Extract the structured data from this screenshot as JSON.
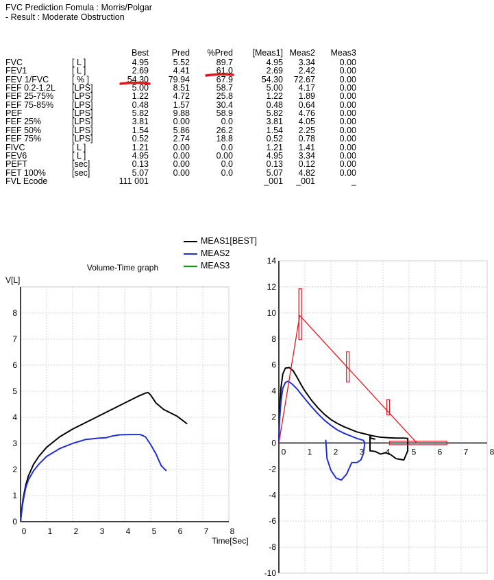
{
  "header": {
    "line1": "FVC Prediction Fomula : Morris/Polgar",
    "line2": "- Result : Moderate Obstruction"
  },
  "table": {
    "columns": [
      "Best",
      "Pred",
      "%Pred",
      "[Meas1]",
      "Meas2",
      "Meas3"
    ],
    "rows": [
      {
        "name": "FVC",
        "unit": "[ L ]",
        "values": [
          "4.95",
          "5.52",
          "89.7",
          "4.95",
          "3.34",
          "0.00"
        ]
      },
      {
        "name": "FEV1",
        "unit": "[ L ]",
        "values": [
          "2.69",
          "4.41",
          "61.0",
          "2.69",
          "2.42",
          "0.00"
        ]
      },
      {
        "name": "FEV 1/FVC",
        "unit": "[ % ]",
        "values": [
          "54.30",
          "79.94",
          "67.9",
          "54.30",
          "72.67",
          "0.00"
        ]
      },
      {
        "name": "FEF 0.2-1.2L",
        "unit": "[LPS]",
        "values": [
          "5.00",
          "8.51",
          "58.7",
          "5.00",
          "4.17",
          "0.00"
        ]
      },
      {
        "name": "FEF 25-75%",
        "unit": "[LPS]",
        "values": [
          "1.22",
          "4.72",
          "25.8",
          "1.22",
          "1.89",
          "0.00"
        ]
      },
      {
        "name": "FEF 75-85%",
        "unit": "[LPS]",
        "values": [
          "0.48",
          "1.57",
          "30.4",
          "0.48",
          "0.64",
          "0.00"
        ]
      },
      {
        "name": "PEF",
        "unit": "[LPS]",
        "values": [
          "5.82",
          "9.88",
          "58.9",
          "5.82",
          "4.76",
          "0.00"
        ]
      },
      {
        "name": "FEF 25%",
        "unit": "[LPS]",
        "values": [
          "3.81",
          "0.00",
          "0.0",
          "3.81",
          "4.05",
          "0.00"
        ]
      },
      {
        "name": "FEF 50%",
        "unit": "[LPS]",
        "values": [
          "1.54",
          "5.86",
          "26.2",
          "1.54",
          "2.25",
          "0.00"
        ]
      },
      {
        "name": "FEF 75%",
        "unit": "[LPS]",
        "values": [
          "0.52",
          "2.74",
          "18.8",
          "0.52",
          "0.78",
          "0.00"
        ]
      },
      {
        "name": "FIVC",
        "unit": "[ L ]",
        "values": [
          "1.21",
          "0.00",
          "0.0",
          "1.21",
          "1.41",
          "0.00"
        ]
      },
      {
        "name": "FEV6",
        "unit": "[ L ]",
        "values": [
          "4.95",
          "0.00",
          "0.00",
          "4.95",
          "3.34",
          "0.00"
        ]
      },
      {
        "name": "PEFT",
        "unit": "[sec]",
        "values": [
          "0.13",
          "0.00",
          "0.0",
          "0.13",
          "0.12",
          "0.00"
        ]
      },
      {
        "name": "FET 100%",
        "unit": "[sec]",
        "values": [
          "5.07",
          "0.00",
          "0.0",
          "5.07",
          "4.82",
          "0.00"
        ]
      },
      {
        "name": "FVL Ecode",
        "unit": "",
        "values": [
          "111 001",
          "",
          "",
          "_001",
          "_001",
          "_"
        ]
      }
    ]
  },
  "legend": [
    {
      "label": "MEAS1[BEST]",
      "color": "#000000"
    },
    {
      "label": "MEAS2",
      "color": "#1f2fd0"
    },
    {
      "label": "MEAS3",
      "color": "#0a9a0a"
    }
  ],
  "highlight_color": "#e8141c",
  "chart_data": [
    {
      "type": "line",
      "title": "Volume-Time graph",
      "ylabel": "V[L]",
      "xlabel": "Time[Sec]",
      "xlim": [
        0,
        8
      ],
      "ylim": [
        0,
        9
      ],
      "xticks": [
        "0",
        "1",
        "2",
        "3",
        "4",
        "5",
        "6",
        "7",
        "8"
      ],
      "yticks": [
        "0",
        "1",
        "2",
        "3",
        "4",
        "5",
        "6",
        "7",
        "8"
      ],
      "grid": true,
      "series": [
        {
          "name": "MEAS1[BEST]",
          "color": "#000000",
          "x": [
            0,
            0.05,
            0.1,
            0.2,
            0.3,
            0.5,
            0.7,
            1.0,
            1.5,
            2.0,
            2.5,
            3.0,
            3.5,
            4.0,
            4.5,
            4.8,
            4.9,
            5.0,
            5.2,
            5.5,
            6.0,
            6.4
          ],
          "y": [
            0,
            0.5,
            0.9,
            1.4,
            1.75,
            2.2,
            2.5,
            2.85,
            3.25,
            3.55,
            3.8,
            4.05,
            4.3,
            4.55,
            4.8,
            4.93,
            4.95,
            4.85,
            4.55,
            4.3,
            4.05,
            3.75
          ]
        },
        {
          "name": "MEAS2",
          "color": "#1f2fd0",
          "x": [
            0,
            0.05,
            0.1,
            0.2,
            0.3,
            0.5,
            0.7,
            1.0,
            1.5,
            2.0,
            2.5,
            3.0,
            3.3,
            3.5,
            3.8,
            4.2,
            4.6,
            4.8,
            5.0,
            5.2,
            5.4,
            5.6
          ],
          "y": [
            0,
            0.45,
            0.8,
            1.3,
            1.6,
            1.95,
            2.2,
            2.5,
            2.8,
            3.0,
            3.15,
            3.2,
            3.22,
            3.28,
            3.33,
            3.34,
            3.34,
            3.25,
            2.95,
            2.6,
            2.15,
            1.95
          ]
        },
        {
          "name": "MEAS3",
          "color": "#0a9a0a",
          "x": [],
          "y": []
        }
      ]
    },
    {
      "type": "line",
      "title": "",
      "xlabel": "",
      "ylabel": "",
      "xlim": [
        0,
        8
      ],
      "ylim": [
        -10,
        14
      ],
      "xticks": [
        "0",
        "1",
        "2",
        "3",
        "4",
        "5",
        "6",
        "7",
        "8"
      ],
      "yticks": [
        "14",
        "12",
        "10",
        "8",
        "6",
        "4",
        "2",
        "0",
        "-2",
        "-4",
        "-6",
        "-8",
        "-10"
      ],
      "grid": true,
      "series": [
        {
          "name": "MEAS1[BEST]",
          "color": "#000000",
          "x": [
            0,
            0.03,
            0.08,
            0.15,
            0.25,
            0.4,
            0.55,
            0.7,
            0.85,
            1.0,
            1.25,
            1.5,
            1.75,
            2.0,
            2.25,
            2.5,
            2.75,
            3.0,
            3.3,
            3.6,
            3.9,
            4.2,
            4.5,
            4.8,
            4.95,
            4.95,
            4.8,
            4.5,
            4.3,
            4.1,
            3.9,
            3.7,
            3.5,
            3.5,
            3.55,
            3.7
          ],
          "y": [
            0,
            2.5,
            4.2,
            5.3,
            5.75,
            5.8,
            5.55,
            5.05,
            4.5,
            4.0,
            3.3,
            2.7,
            2.2,
            1.8,
            1.5,
            1.25,
            1.05,
            0.85,
            0.7,
            0.55,
            0.45,
            0.4,
            0.38,
            0.38,
            0.35,
            -0.6,
            -1.3,
            -1.2,
            -0.9,
            -0.75,
            -0.85,
            -0.65,
            -0.6,
            0.5,
            0.35,
            0.3
          ]
        },
        {
          "name": "MEAS2",
          "color": "#1f2fd0",
          "x": [
            0,
            0.03,
            0.08,
            0.15,
            0.25,
            0.35,
            0.5,
            0.7,
            1.0,
            1.25,
            1.5,
            1.75,
            2.0,
            2.25,
            2.5,
            2.75,
            3.0,
            3.25,
            3.3,
            3.25,
            3.15,
            3.0,
            2.8,
            2.6,
            2.4,
            2.2,
            2.0,
            1.85,
            1.8
          ],
          "y": [
            0,
            1.8,
            3.2,
            4.2,
            4.65,
            4.75,
            4.55,
            4.15,
            3.4,
            2.8,
            2.25,
            1.75,
            1.35,
            1.0,
            0.75,
            0.55,
            0.35,
            0.2,
            0.0,
            -0.8,
            -1.3,
            -1.5,
            -1.5,
            -2.4,
            -2.85,
            -2.7,
            -2.1,
            -1.2,
            0.25
          ]
        },
        {
          "name": "MEAS3",
          "color": "#0a9a0a",
          "x": [],
          "y": []
        },
        {
          "name": "",
          "color": "#e8141c",
          "x": [
            0,
            0.8,
            5.3
          ],
          "y": [
            0,
            9.8,
            0
          ]
        }
      ]
    }
  ]
}
